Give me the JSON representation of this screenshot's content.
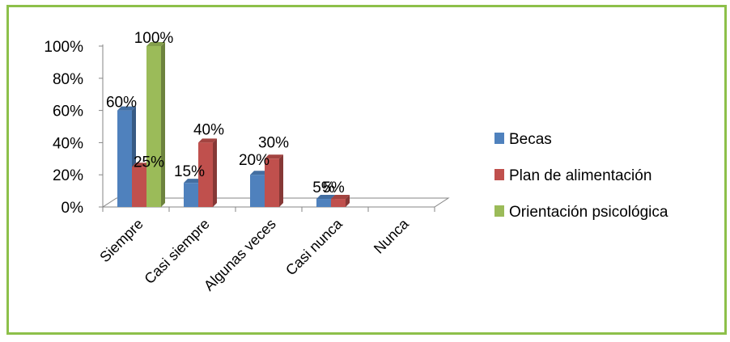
{
  "chart_data": {
    "type": "bar",
    "categories": [
      "Siempre",
      "Casi siempre",
      "Algunas veces",
      "Casi nunca",
      "Nunca"
    ],
    "series": [
      {
        "name": "Becas",
        "values": [
          60,
          15,
          20,
          5,
          null
        ],
        "labels": [
          "60%",
          "15%",
          "20%",
          "5%",
          ""
        ],
        "color": "#4f81bd"
      },
      {
        "name": "Plan de alimentación",
        "values": [
          25,
          40,
          30,
          5,
          null
        ],
        "labels": [
          "25%",
          "40%",
          "30%",
          "5%",
          ""
        ],
        "color": "#c0504d"
      },
      {
        "name": "Orientación psicológica",
        "values": [
          100,
          null,
          null,
          null,
          null
        ],
        "labels": [
          "100%",
          "",
          "",
          "",
          ""
        ],
        "color": "#9bbb59"
      }
    ],
    "yticks": [
      "0%",
      "20%",
      "40%",
      "60%",
      "80%",
      "100%"
    ],
    "ylim": [
      0,
      100
    ],
    "legend_position": "right",
    "grid": false
  }
}
